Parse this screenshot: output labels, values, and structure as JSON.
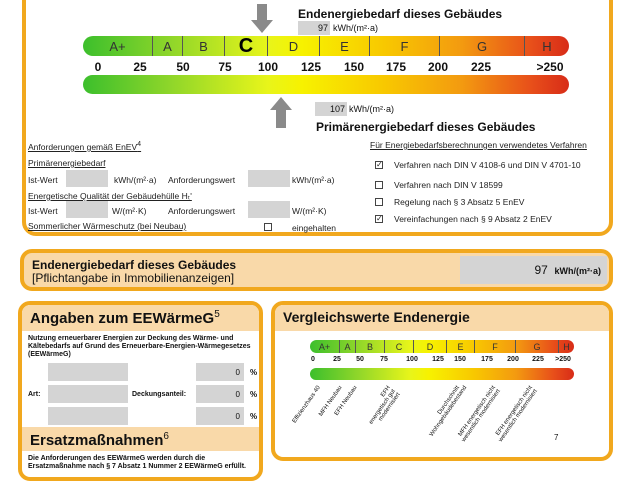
{
  "scale": {
    "classes": [
      "A+",
      "A",
      "B",
      "C",
      "D",
      "E",
      "F",
      "G",
      "H"
    ],
    "current_class": "C",
    "ticks": [
      "0",
      "25",
      "50",
      "75",
      "100",
      "125",
      "150",
      "175",
      "200",
      "225",
      ">250"
    ]
  },
  "end_energy": {
    "title": "Endenergiebedarf dieses Gebäudes",
    "value": "97",
    "unit": "kWh/(m²·a)"
  },
  "primary_energy": {
    "title": "Primärenergiebedarf dieses Gebäudes",
    "value": "107",
    "unit": "kWh/(m²·a)"
  },
  "requirements": {
    "title": "Anforderungen gemäß EnEV",
    "sup": "4",
    "primary": "Primärenergiebedarf",
    "ist": "Ist-Wert",
    "unit1": "kWh/(m²·a)",
    "anf": "Anforderungswert",
    "hull": "Energetische Qualität der Gebäudehülle Hₜ'",
    "unit2": "W/(m²·K)",
    "summer": "Sommerlicher Wärmeschutz (bei Neubau)",
    "kept": "eingehalten"
  },
  "methods": {
    "title": "Für Energiebedarfsberechnungen verwendetes Verfahren",
    "items": [
      {
        "label": "Verfahren nach DIN V 4108-6 und DIN V 4701-10",
        "checked": true
      },
      {
        "label": "Verfahren nach DIN V 18599",
        "checked": false
      },
      {
        "label": "Regelung nach § 3 Absatz 5 EnEV",
        "checked": false
      },
      {
        "label": "Vereinfachungen nach § 9 Absatz 2 EnEV",
        "checked": true
      }
    ]
  },
  "band": {
    "title": "Endenergiebedarf dieses Gebäudes",
    "subtitle": "[Pflichtangabe in Immobilienanzeigen]",
    "value": "97",
    "unit": "kWh/(m²·a)"
  },
  "eew": {
    "title": "Angaben zum EEWärmeG",
    "sup": "5",
    "desc": "Nutzung erneuerbarer Energien zur Deckung des Wärme- und Kältebedarfs auf Grund des Erneuerbare-Energien-Wärmegesetzes (EEWärmeG)",
    "art": "Art:",
    "share_label": "Deckungsanteil:",
    "shares": [
      "0",
      "0",
      "0"
    ],
    "pct": "%"
  },
  "ersatz": {
    "title": "Ersatzmaßnahmen",
    "sup": "6",
    "desc": "Die Anforderungen des EEWärmeG werden durch die Ersatzmaßnahme nach § 7 Absatz 1 Nummer 2 EEWärmeG erfüllt."
  },
  "compare": {
    "title": "Vergleichswerte Endenergie",
    "classes": [
      "A+",
      "A",
      "B",
      "C",
      "D",
      "E",
      "F",
      "G",
      "H"
    ],
    "ticks": [
      "0",
      "25",
      "50",
      "75",
      "100",
      "125",
      "150",
      "175",
      "200",
      "225",
      ">250"
    ],
    "labels": [
      "Effizienzhaus 40",
      "MFH Neubau",
      "EFH Neubau",
      "EFH energetisch gut modernisiert",
      "Durchschnitt Wohngebäudebestand",
      "MFH energetisch nicht wesentlich modernisiert",
      "EFH energetisch nicht wesentlich modernisiert"
    ],
    "footnote": "7"
  },
  "colors": {
    "border": "#f1a81e",
    "header": "#f9d9a9",
    "field": "#d4d4d4"
  }
}
